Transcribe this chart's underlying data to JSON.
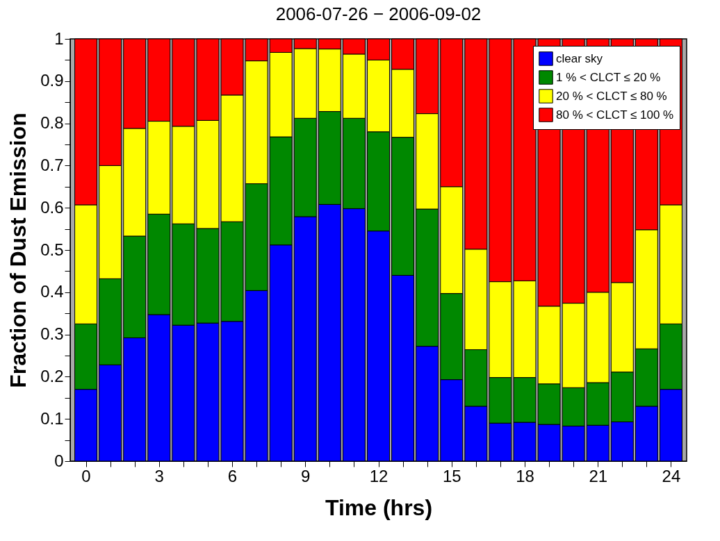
{
  "chart_data": {
    "type": "bar",
    "stacked": true,
    "title": "2006-07-26 − 2006-09-02",
    "xlabel": "Time (hrs)",
    "ylabel": "Fraction of Dust Emission",
    "x": [
      0,
      1,
      2,
      3,
      4,
      5,
      6,
      7,
      8,
      9,
      10,
      11,
      12,
      13,
      14,
      15,
      16,
      17,
      18,
      19,
      20,
      21,
      22,
      23,
      24
    ],
    "series": [
      {
        "name": "clear sky",
        "color": "#0000ff",
        "values": [
          0.17,
          0.228,
          0.292,
          0.347,
          0.322,
          0.327,
          0.331,
          0.404,
          0.512,
          0.579,
          0.608,
          0.598,
          0.545,
          0.44,
          0.272,
          0.193,
          0.13,
          0.09,
          0.092,
          0.087,
          0.083,
          0.085,
          0.093,
          0.13,
          0.17
        ]
      },
      {
        "name": "1 % < CLCT ≤ 20 %",
        "color": "#008800",
        "values": [
          0.155,
          0.204,
          0.241,
          0.238,
          0.24,
          0.224,
          0.236,
          0.253,
          0.256,
          0.233,
          0.22,
          0.214,
          0.235,
          0.327,
          0.325,
          0.204,
          0.134,
          0.108,
          0.106,
          0.096,
          0.091,
          0.101,
          0.118,
          0.136,
          0.155
        ]
      },
      {
        "name": "20 % < CLCT ≤ 80 %",
        "color": "#ffff00",
        "values": [
          0.282,
          0.268,
          0.255,
          0.22,
          0.231,
          0.256,
          0.3,
          0.291,
          0.2,
          0.165,
          0.148,
          0.152,
          0.17,
          0.161,
          0.226,
          0.253,
          0.238,
          0.227,
          0.229,
          0.184,
          0.2,
          0.214,
          0.212,
          0.282,
          0.282
        ]
      },
      {
        "name": "80 % < CLCT ≤ 100 %",
        "color": "#ff0000",
        "values": [
          0.393,
          0.3,
          0.212,
          0.195,
          0.207,
          0.193,
          0.133,
          0.052,
          0.032,
          0.023,
          0.024,
          0.036,
          0.05,
          0.072,
          0.177,
          0.35,
          0.498,
          0.575,
          0.573,
          0.633,
          0.626,
          0.6,
          0.577,
          0.452,
          0.393
        ]
      }
    ],
    "xlim": [
      -0.5,
      24.5
    ],
    "xticks": [
      0,
      {
        "value": 1,
        "label": null
      },
      {
        "value": 2,
        "label": null
      },
      3,
      {
        "value": 4,
        "label": null
      },
      {
        "value": 5,
        "label": null
      },
      6,
      {
        "value": 7,
        "label": null
      },
      {
        "value": 8,
        "label": null
      },
      9,
      {
        "value": 10,
        "label": null
      },
      {
        "value": 11,
        "label": null
      },
      12,
      {
        "value": 13,
        "label": null
      },
      {
        "value": 14,
        "label": null
      },
      15,
      {
        "value": 16,
        "label": null
      },
      {
        "value": 17,
        "label": null
      },
      18,
      {
        "value": 19,
        "label": null
      },
      {
        "value": 20,
        "label": null
      },
      21,
      {
        "value": 22,
        "label": null
      },
      {
        "value": 23,
        "label": null
      },
      24
    ],
    "ylim": [
      0,
      1
    ],
    "yticks": [
      0,
      {
        "value": 0.05,
        "label": null
      },
      0.1,
      {
        "value": 0.15,
        "label": null
      },
      0.2,
      {
        "value": 0.25,
        "label": null
      },
      0.3,
      {
        "value": 0.35,
        "label": null
      },
      0.4,
      {
        "value": 0.45,
        "label": null
      },
      0.5,
      {
        "value": 0.55,
        "label": null
      },
      0.6,
      {
        "value": 0.65,
        "label": null
      },
      0.7,
      {
        "value": 0.75,
        "label": null
      },
      0.8,
      {
        "value": 0.85,
        "label": null
      },
      0.9,
      {
        "value": 0.95,
        "label": null
      },
      1
    ],
    "grid": false,
    "legend": "top right"
  }
}
